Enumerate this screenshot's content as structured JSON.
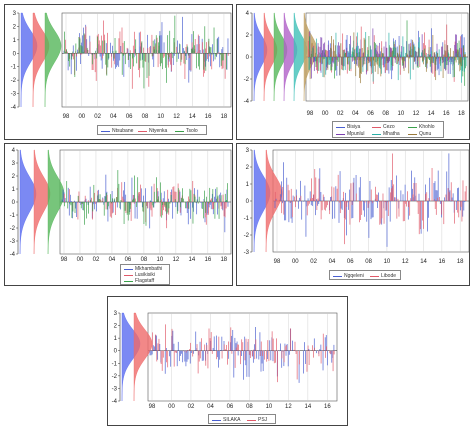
{
  "chart_data": [
    {
      "type": "bar",
      "panel": "top-left",
      "x_ticks": [
        "98",
        "00",
        "02",
        "04",
        "06",
        "08",
        "10",
        "12",
        "14",
        "16",
        "18"
      ],
      "y_ticks": [
        "-4",
        "-3",
        "-2",
        "-1",
        "0",
        "1",
        "2",
        "3"
      ],
      "ylim": [
        -4,
        3
      ],
      "series": [
        {
          "name": "Ntsubane",
          "color": "#4a5fd0"
        },
        {
          "name": "Ntyenka",
          "color": "#e05a6a"
        },
        {
          "name": "Tsolo",
          "color": "#3aa04a"
        }
      ],
      "density_colors": [
        "#5a6cf0",
        "#ef6a6a",
        "#55b65a"
      ],
      "legend_position": "bottom",
      "legend_columns": 3
    },
    {
      "type": "bar",
      "panel": "top-right",
      "x_ticks": [
        "98",
        "00",
        "02",
        "04",
        "06",
        "08",
        "10",
        "12",
        "14",
        "16",
        "18"
      ],
      "y_ticks": [
        "-4",
        "-2",
        "0",
        "2",
        "4"
      ],
      "ylim": [
        -4,
        4
      ],
      "series": [
        {
          "name": "Bisiya",
          "color": "#4a5fd0"
        },
        {
          "name": "Cezo",
          "color": "#e05a6a"
        },
        {
          "name": "Khohlo",
          "color": "#3aa04a"
        },
        {
          "name": "Mpunlul",
          "color": "#7b3fb0"
        },
        {
          "name": "Mhatha",
          "color": "#2ab0a8"
        },
        {
          "name": "Qunu",
          "color": "#9a7a3a"
        }
      ],
      "density_colors": [
        "#5a6cf0",
        "#ef6a6a",
        "#55b65a",
        "#b060c8",
        "#40c0b8",
        "#c0a060"
      ],
      "legend_position": "bottom",
      "legend_columns": 3
    },
    {
      "type": "bar",
      "panel": "middle-left",
      "x_ticks": [
        "98",
        "00",
        "02",
        "04",
        "06",
        "08",
        "10",
        "12",
        "14",
        "16",
        "18"
      ],
      "y_ticks": [
        "-4",
        "-3",
        "-2",
        "-1",
        "0",
        "1",
        "2",
        "3",
        "4"
      ],
      "ylim": [
        -4,
        4
      ],
      "series": [
        {
          "name": "Mkhambathi",
          "color": "#4a5fd0"
        },
        {
          "name": "Lusikisiki",
          "color": "#e05a6a"
        },
        {
          "name": "Flagstaff",
          "color": "#3aa04a"
        }
      ],
      "density_colors": [
        "#5a6cf0",
        "#ef6a6a",
        "#55b65a"
      ],
      "legend_position": "bottom",
      "legend_columns": 1
    },
    {
      "type": "bar",
      "panel": "middle-right",
      "x_ticks": [
        "98",
        "00",
        "02",
        "04",
        "06",
        "08",
        "10",
        "12",
        "14",
        "16",
        "18"
      ],
      "y_ticks": [
        "-3",
        "-2",
        "-1",
        "0",
        "1",
        "2",
        "3"
      ],
      "ylim": [
        -3,
        3
      ],
      "series": [
        {
          "name": "Ngqeleni",
          "color": "#4a5fd0"
        },
        {
          "name": "Libode",
          "color": "#e05a6a"
        }
      ],
      "density_colors": [
        "#5a6cf0",
        "#ef6a6a"
      ],
      "legend_position": "bottom",
      "legend_columns": 2
    },
    {
      "type": "bar",
      "panel": "bottom-center",
      "x_ticks": [
        "98",
        "00",
        "02",
        "04",
        "06",
        "08",
        "10",
        "12",
        "14",
        "16"
      ],
      "y_ticks": [
        "-4",
        "-3",
        "-2",
        "-1",
        "0",
        "1",
        "2",
        "3"
      ],
      "ylim": [
        -4,
        3
      ],
      "series": [
        {
          "name": "SILAKA",
          "color": "#4a5fd0"
        },
        {
          "name": "PSJ",
          "color": "#e05a6a"
        }
      ],
      "density_colors": [
        "#5a6cf0",
        "#ef6a6a"
      ],
      "legend_position": "bottom",
      "legend_columns": 2
    }
  ]
}
